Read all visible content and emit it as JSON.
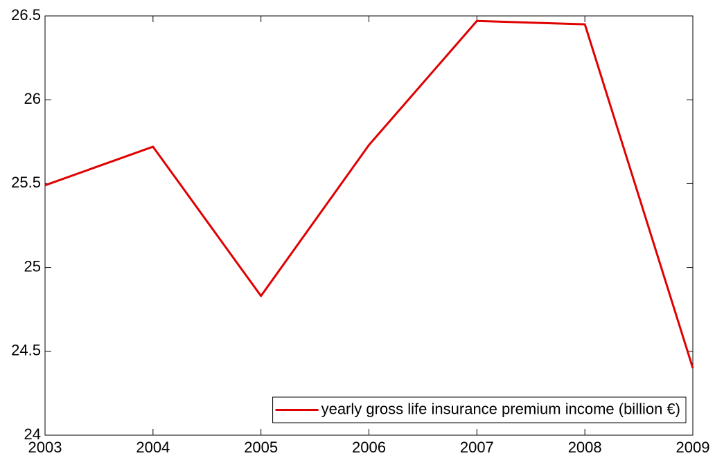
{
  "chart_data": {
    "type": "line",
    "x": [
      2003,
      2004,
      2005,
      2006,
      2007,
      2008,
      2009
    ],
    "series": [
      {
        "name": "yearly gross life insurance premium income (billion €)",
        "color": "#e00000",
        "values": [
          25.49,
          25.72,
          24.83,
          25.73,
          26.47,
          26.45,
          24.4
        ]
      }
    ],
    "xlim": [
      2003,
      2009
    ],
    "xticks": [
      2003,
      2004,
      2005,
      2006,
      2007,
      2008,
      2009
    ],
    "ylim": [
      24,
      26.5
    ],
    "yticks": [
      24,
      24.5,
      25,
      25.5,
      26,
      26.5
    ],
    "grid": false,
    "legend": "lower right"
  }
}
